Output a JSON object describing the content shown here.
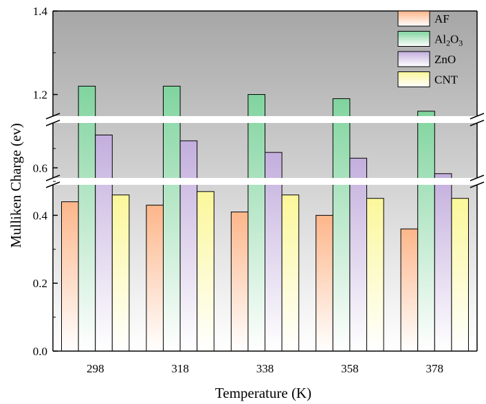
{
  "chart_data": {
    "type": "bar",
    "title": "",
    "xlabel": "Temperature (K)",
    "ylabel": "Mulliken Charge (ev)",
    "categories": [
      "298",
      "318",
      "338",
      "358",
      "378"
    ],
    "series": [
      {
        "name": "AF",
        "color": "#fdb68a",
        "values": [
          0.44,
          0.43,
          0.41,
          0.4,
          0.36
        ]
      },
      {
        "name": "Al2O3",
        "color": "#80d49e",
        "values": [
          1.22,
          1.22,
          1.2,
          1.19,
          1.16
        ]
      },
      {
        "name": "ZnO",
        "color": "#c3aedd",
        "values": [
          0.77,
          0.74,
          0.68,
          0.65,
          0.57
        ]
      },
      {
        "name": "CNT",
        "color": "#fbf79a",
        "values": [
          0.46,
          0.47,
          0.46,
          0.45,
          0.45
        ]
      }
    ],
    "y_segments": [
      {
        "range": [
          0.0,
          0.5
        ],
        "ticks": [
          "0.0",
          "0.2",
          "0.4"
        ],
        "tick_values": [
          0.0,
          0.2,
          0.4
        ]
      },
      {
        "range": [
          0.53,
          0.85
        ],
        "ticks": [
          "0.6"
        ],
        "tick_values": [
          0.6
        ]
      },
      {
        "range": [
          1.14,
          1.4
        ],
        "ticks": [
          "1.2",
          "1.4"
        ],
        "tick_values": [
          1.2,
          1.4
        ]
      }
    ],
    "legend": {
      "position": "top-right",
      "entries": [
        {
          "label": "AF",
          "series": 0
        },
        {
          "label_parts": [
            "Al",
            "2",
            "O",
            "3"
          ],
          "series": 1
        },
        {
          "label": "ZnO",
          "series": 2
        },
        {
          "label": "CNT",
          "series": 3
        }
      ]
    },
    "background": {
      "top": "#a6a6a6",
      "bottom": "#ffffff"
    }
  }
}
